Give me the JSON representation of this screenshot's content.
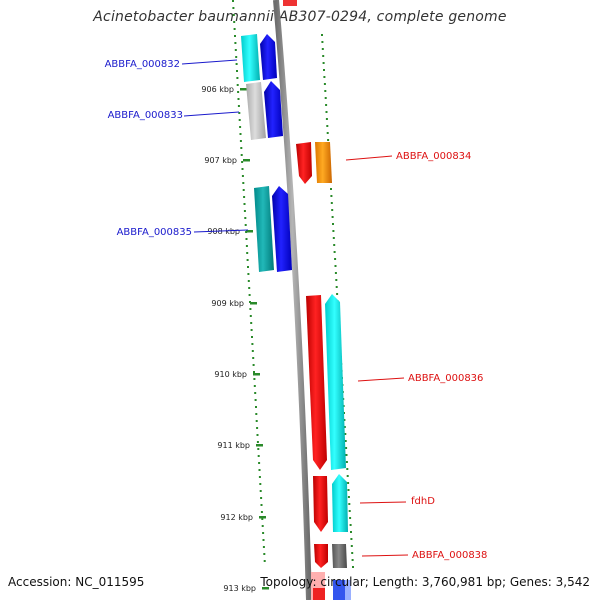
{
  "title": "Acinetobacter baumannii AB307-0294, complete genome",
  "footer": {
    "accession": "Accession: NC_011595",
    "summary": "Topology: circular; Length: 3,760,981 bp; Genes: 3,542"
  },
  "axis": {
    "ticks": [
      "906 kbp",
      "907 kbp",
      "908 kbp",
      "909 kbp",
      "910 kbp",
      "911 kbp",
      "912 kbp",
      "913 kbp"
    ]
  },
  "colors": {
    "backbone": "#8a8a8a",
    "tick": "#2a8a2a",
    "label_left": "#1a1acc",
    "label_right": "#dd1111"
  },
  "genes_left": [
    {
      "label": "ABBFA_000832",
      "color": "#1a1acc"
    },
    {
      "label": "ABBFA_000833",
      "color": "#1a1acc"
    },
    {
      "label": "ABBFA_000835",
      "color": "#1a1acc"
    }
  ],
  "genes_right": [
    {
      "label": "ABBFA_000834",
      "color": "#dd1111"
    },
    {
      "label": "ABBFA_000836",
      "color": "#dd1111"
    },
    {
      "label": "fdhD",
      "color": "#dd1111"
    },
    {
      "label": "ABBFA_000838",
      "color": "#dd1111"
    }
  ]
}
